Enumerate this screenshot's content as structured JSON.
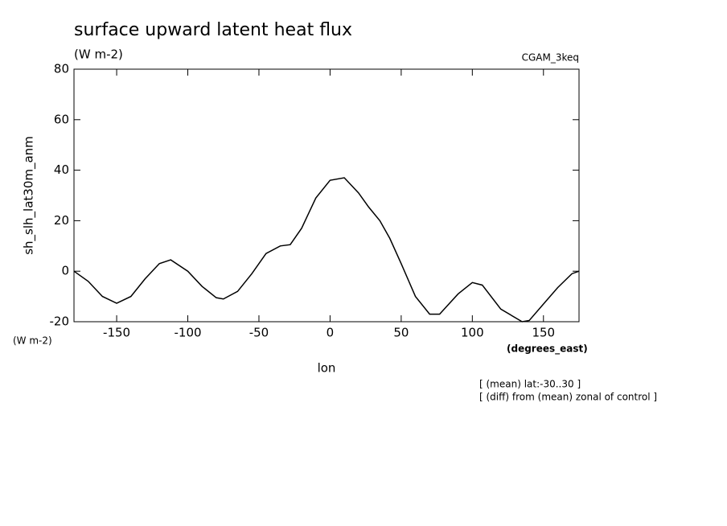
{
  "chart_data": {
    "type": "line",
    "title": "surface upward latent heat flux",
    "subtitle": "(W m-2)",
    "dataset_label": "CGAM_3keq",
    "y_label": "sh_slh_lat30m_anm",
    "y_units": "(W m-2)",
    "x_label": "lon",
    "x_units": "(degrees_east)",
    "annotations": [
      "[ (mean) lat:-30..30 ]",
      "[ (diff) from (mean) zonal of control ]"
    ],
    "x": [
      -180,
      -170,
      -160,
      -150,
      -140,
      -130,
      -120,
      -112,
      -100,
      -90,
      -80,
      -75,
      -65,
      -55,
      -45,
      -35,
      -28,
      -20,
      -10,
      0,
      10,
      20,
      27,
      35,
      42,
      50,
      60,
      70,
      77,
      90,
      100,
      107,
      120,
      135,
      140,
      150,
      160,
      170,
      175
    ],
    "series": [
      {
        "name": "sh_slh_lat30m_anm",
        "color": "#000000",
        "values": [
          0,
          -4,
          -10,
          -12.7,
          -10,
          -3,
          3,
          4.5,
          0,
          -6,
          -10.5,
          -11,
          -8,
          -1,
          7,
          10,
          10.5,
          17,
          29,
          36,
          37,
          31,
          25.5,
          20,
          13,
          3,
          -10,
          -17,
          -17,
          -9,
          -4.5,
          -5.5,
          -15,
          -20,
          -19.5,
          -13,
          -6.5,
          -1,
          0
        ]
      }
    ],
    "xlim": [
      -180,
      175
    ],
    "ylim": [
      -20,
      80
    ],
    "xticks": [
      -150,
      -100,
      -50,
      0,
      50,
      100,
      150
    ],
    "yticks": [
      -20,
      0,
      20,
      40,
      60,
      80
    ]
  }
}
